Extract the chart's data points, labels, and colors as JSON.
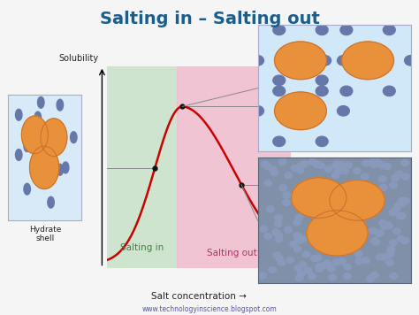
{
  "title": "Salting in – Salting out",
  "title_color": "#1b5e8c",
  "title_fontsize": 14,
  "bg_color": "#f5f5f5",
  "curve_color": "#cc0000",
  "salting_in_color": "#c8e6c9",
  "salting_out_color": "#f8bbd0",
  "plot_bg": "#e0e0e0",
  "label_salting_in": "Salting in",
  "label_salting_out": "Salting out",
  "label_hydrate": "Hydrate\nshell",
  "label_solubility": "Solubility",
  "label_salt": "Salt concentration →",
  "website": "www.technologyinscience.blogspot.com",
  "protein_color": "#e8903a",
  "protein_edge": "#c8702a",
  "dot_color_blue": "#6677aa",
  "dot_color_dense": "#8899bb",
  "box1_bg": "#d8eaf8",
  "box2_bg": "#d0e8f8",
  "box3_bg": "#8090a8",
  "salting_in_text_color": "#4a7c4a",
  "salting_out_text_color": "#aa3366",
  "arrow_color": "#222222",
  "line_color": "#888888",
  "dot_black": "#111111"
}
